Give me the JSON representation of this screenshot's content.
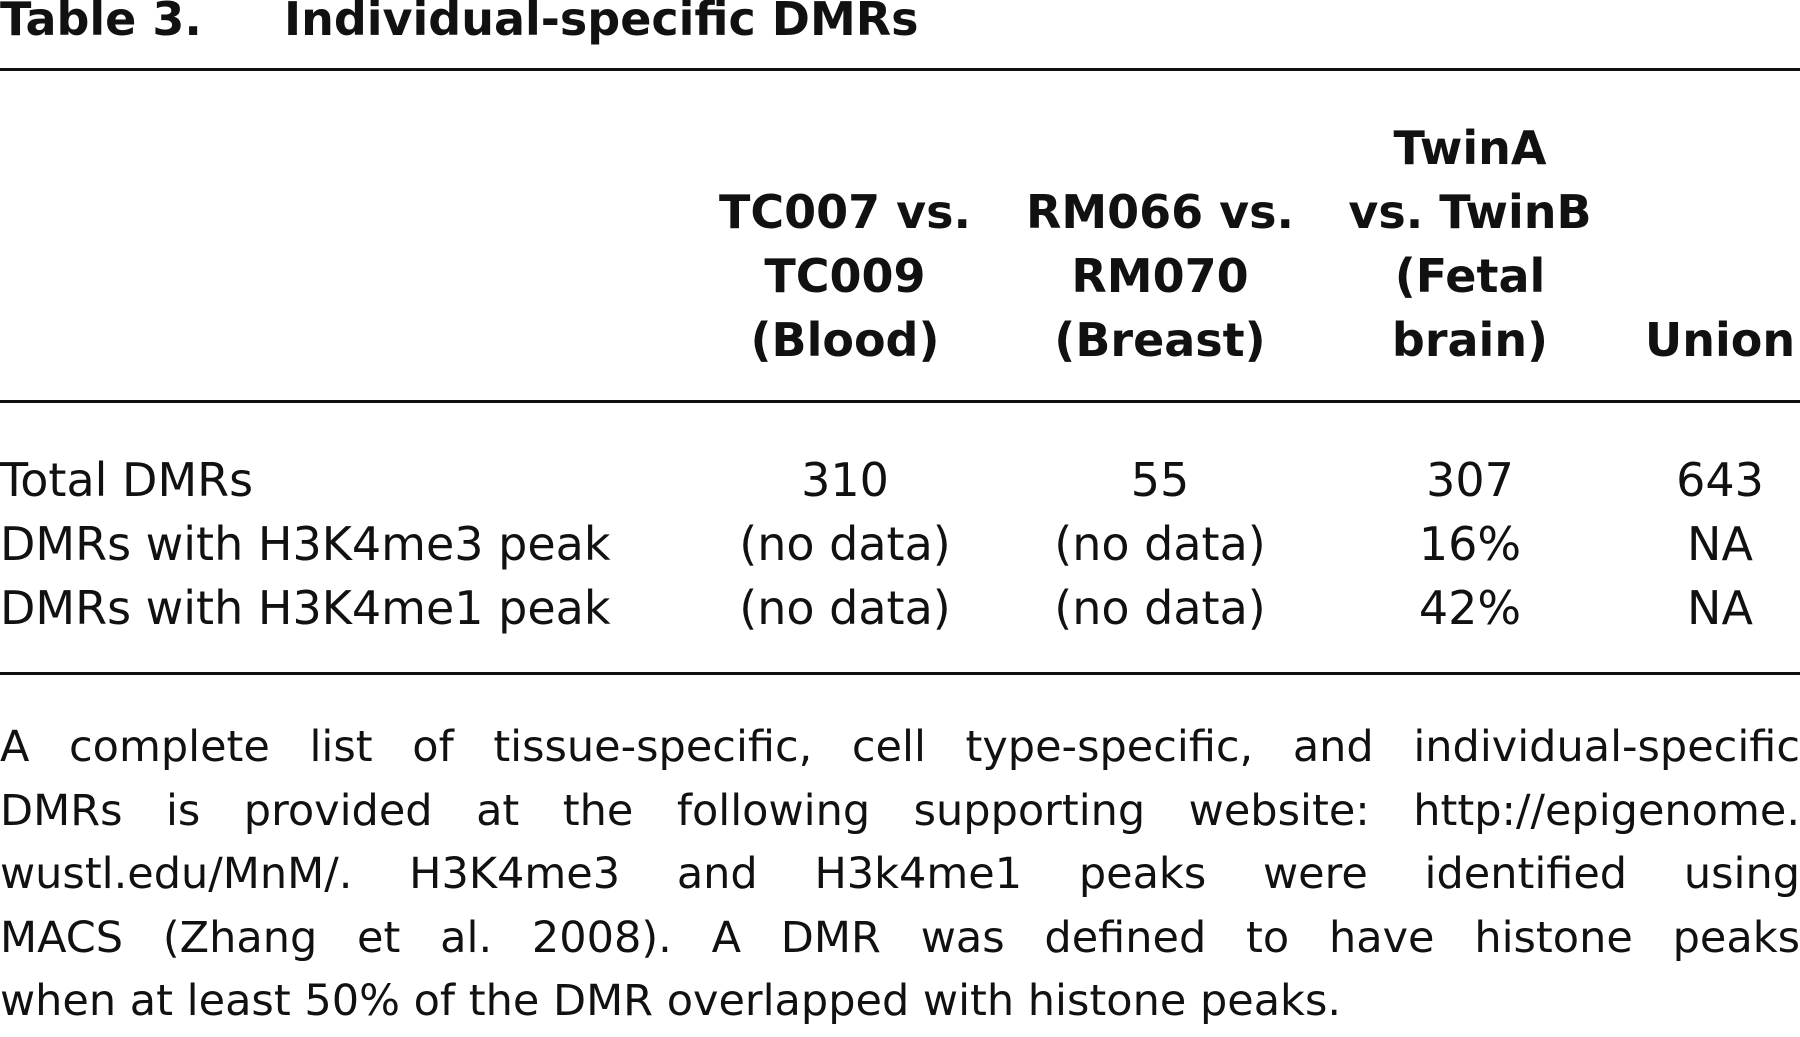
{
  "table": {
    "label": "Table 3.",
    "title": "Individual-specific DMRs",
    "columns": [
      {
        "lines": [
          "TC007 vs.",
          "TC009",
          "(Blood)"
        ]
      },
      {
        "lines": [
          "RM066 vs.",
          "RM070",
          "(Breast)"
        ]
      },
      {
        "lines": [
          "TwinA",
          "vs. TwinB",
          "(Fetal",
          "brain)"
        ]
      },
      {
        "lines": [
          "Union"
        ]
      }
    ],
    "rows": [
      {
        "label": "Total DMRs",
        "values": [
          "310",
          "55",
          "307",
          "643"
        ]
      },
      {
        "label": "DMRs with H3K4me3 peak",
        "values": [
          "(no data)",
          "(no data)",
          "16%",
          "NA"
        ]
      },
      {
        "label": "DMRs with H3K4me1 peak",
        "values": [
          "(no data)",
          "(no data)",
          "42%",
          "NA"
        ]
      }
    ],
    "footnote_lines": [
      "A complete list of tissue-specific, cell type-specific, and individual-specific",
      "DMRs is provided at the following supporting website: http://epigenome.",
      "wustl.edu/MnM/. H3K4me3 and H3k4me1 peaks were identified using",
      "MACS (Zhang et al. 2008). A DMR was defined to have histone peaks",
      "when at least 50% of the DMR overlapped with histone peaks."
    ]
  }
}
